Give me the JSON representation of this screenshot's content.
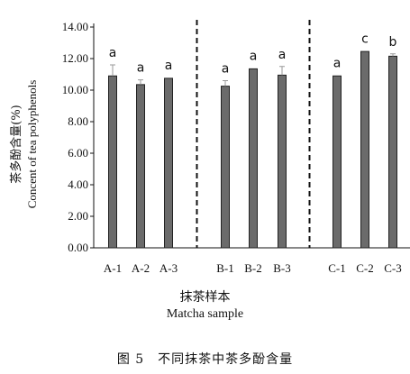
{
  "chart_data": {
    "type": "bar",
    "categories": [
      "A-1",
      "A-2",
      "A-3",
      "B-1",
      "B-2",
      "B-3",
      "C-1",
      "C-2",
      "C-3"
    ],
    "values": [
      10.9,
      10.35,
      10.75,
      10.25,
      11.35,
      10.95,
      10.9,
      12.45,
      12.15
    ],
    "errors": [
      0.7,
      0.3,
      0.05,
      0.35,
      0.05,
      0.55,
      0.05,
      0.05,
      0.15
    ],
    "significance": [
      "a",
      "a",
      "a",
      "a",
      "a",
      "a",
      "a",
      "c",
      "b"
    ],
    "group_separators_after": [
      3,
      6
    ],
    "ylabel_cn": "茶多酚含量(%)",
    "ylabel_en": "Concent of tea polyphenols",
    "xlabel_cn": "抹茶样本",
    "xlabel_en": "Matcha sample",
    "ylim": [
      0,
      14
    ],
    "yticks": [
      "0.00",
      "2.00",
      "4.00",
      "6.00",
      "8.00",
      "10.00",
      "12.00",
      "14.00"
    ],
    "bar_color": "#6b6b6b",
    "error_color": "#999999",
    "grid": false
  },
  "caption": "图 5　不同抹茶中茶多酚含量"
}
